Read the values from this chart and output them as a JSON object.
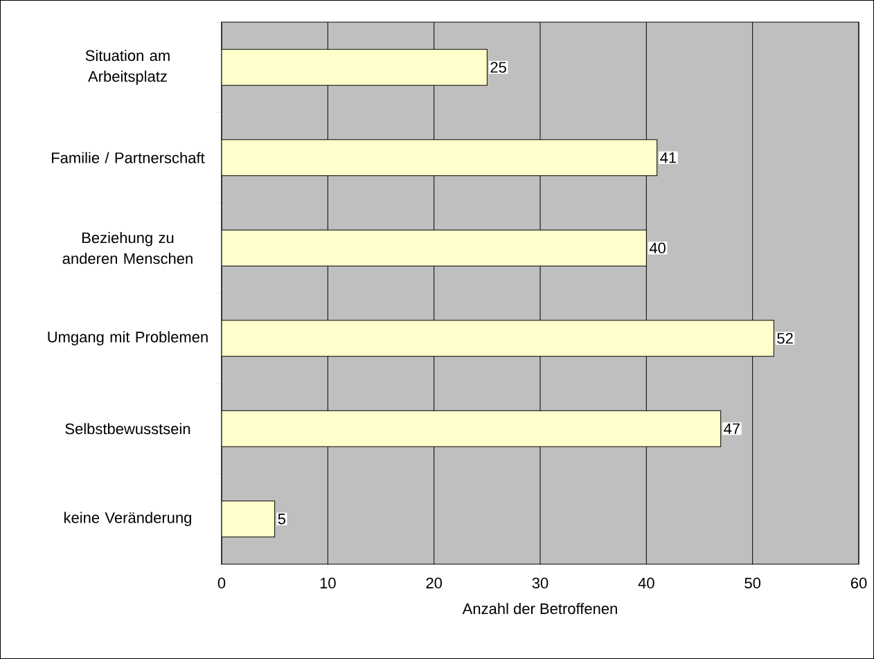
{
  "chart_data": {
    "type": "bar",
    "orientation": "horizontal",
    "categories": [
      "Situation am Arbeitsplatz",
      "Familie / Partnerschaft",
      "Beziehung zu anderen Menschen",
      "Umgang mit Problemen",
      "Selbstbewusstsein",
      "keine Veränderung"
    ],
    "values": [
      25,
      41,
      40,
      52,
      47,
      5
    ],
    "color": "#ffffcc",
    "xlabel": "Anzahl der Betroffenen",
    "xlim": [
      0,
      60
    ],
    "xticks": [
      0,
      10,
      20,
      30,
      40,
      50,
      60
    ],
    "grid": "x",
    "data_labels": true
  }
}
